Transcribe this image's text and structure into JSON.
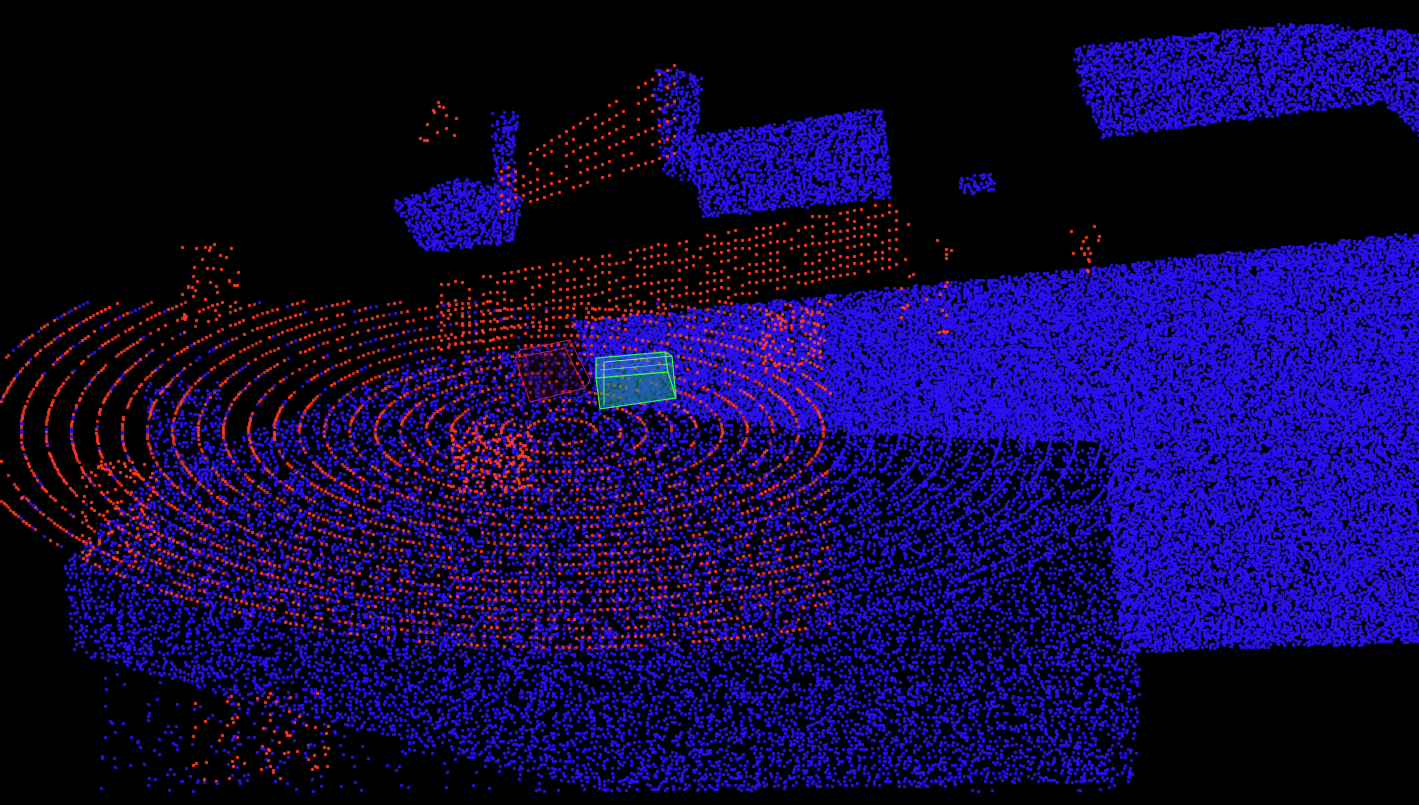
{
  "viewer": {
    "background_color": "#000000",
    "point_size": 3
  },
  "point_cloud": {
    "accumulated_map_color": "#2a10f0",
    "current_scan_color": "#ff3a24",
    "current_scan_dim_color": "#d83020",
    "render_mode": "points"
  },
  "bounding_boxes": [
    {
      "label": "",
      "edge_color": "#2aff4a",
      "fill_color": "#1aa07a",
      "style": "highlighted"
    },
    {
      "label": "",
      "edge_color": "#c01a5a",
      "fill_color": "#3a0820",
      "style": "faint"
    }
  ]
}
